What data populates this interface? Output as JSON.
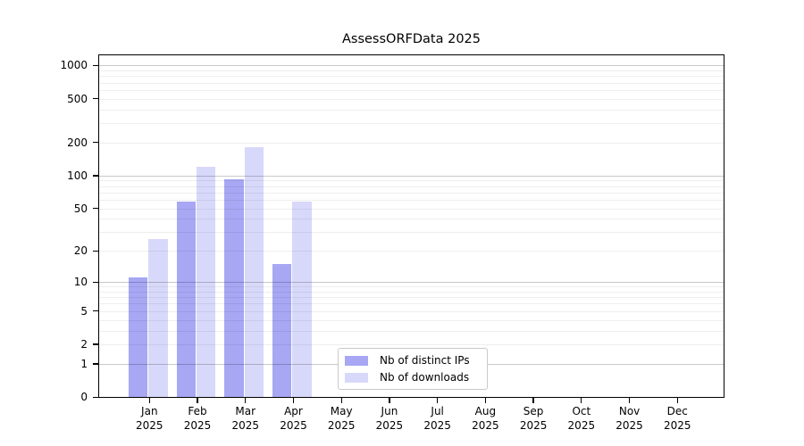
{
  "title": "AssessORFData 2025",
  "chart_data": {
    "type": "bar",
    "title": "AssessORFData 2025",
    "subtitle": "",
    "xlabel": "",
    "ylabel": "",
    "y_scale": "log10(1+y)",
    "ylim": [
      0,
      1255
    ],
    "y_tick_labels": [
      0,
      1,
      2,
      5,
      10,
      20,
      50,
      100,
      200,
      500,
      1000
    ],
    "grid": "on",
    "legend_position": "bottom-center",
    "categories": [
      {
        "month": "Jan",
        "year": "2025"
      },
      {
        "month": "Feb",
        "year": "2025"
      },
      {
        "month": "Mar",
        "year": "2025"
      },
      {
        "month": "Apr",
        "year": "2025"
      },
      {
        "month": "May",
        "year": "2025"
      },
      {
        "month": "Jun",
        "year": "2025"
      },
      {
        "month": "Jul",
        "year": "2025"
      },
      {
        "month": "Aug",
        "year": "2025"
      },
      {
        "month": "Sep",
        "year": "2025"
      },
      {
        "month": "Oct",
        "year": "2025"
      },
      {
        "month": "Nov",
        "year": "2025"
      },
      {
        "month": "Dec",
        "year": "2025"
      }
    ],
    "series": [
      {
        "name": "Nb of distinct IPs",
        "color": "#a7a7f4",
        "values": [
          11,
          58,
          92,
          15,
          0,
          0,
          0,
          0,
          0,
          0,
          0,
          0
        ]
      },
      {
        "name": "Nb of downloads",
        "color": "#d8d8fa",
        "values": [
          26,
          120,
          180,
          58,
          0,
          0,
          0,
          0,
          0,
          0,
          0,
          0
        ]
      }
    ],
    "colors": {
      "major_gridline": "#c9c9c9",
      "minor_gridline": "#ededed",
      "axis": "#000000",
      "background": "#ffffff"
    }
  }
}
